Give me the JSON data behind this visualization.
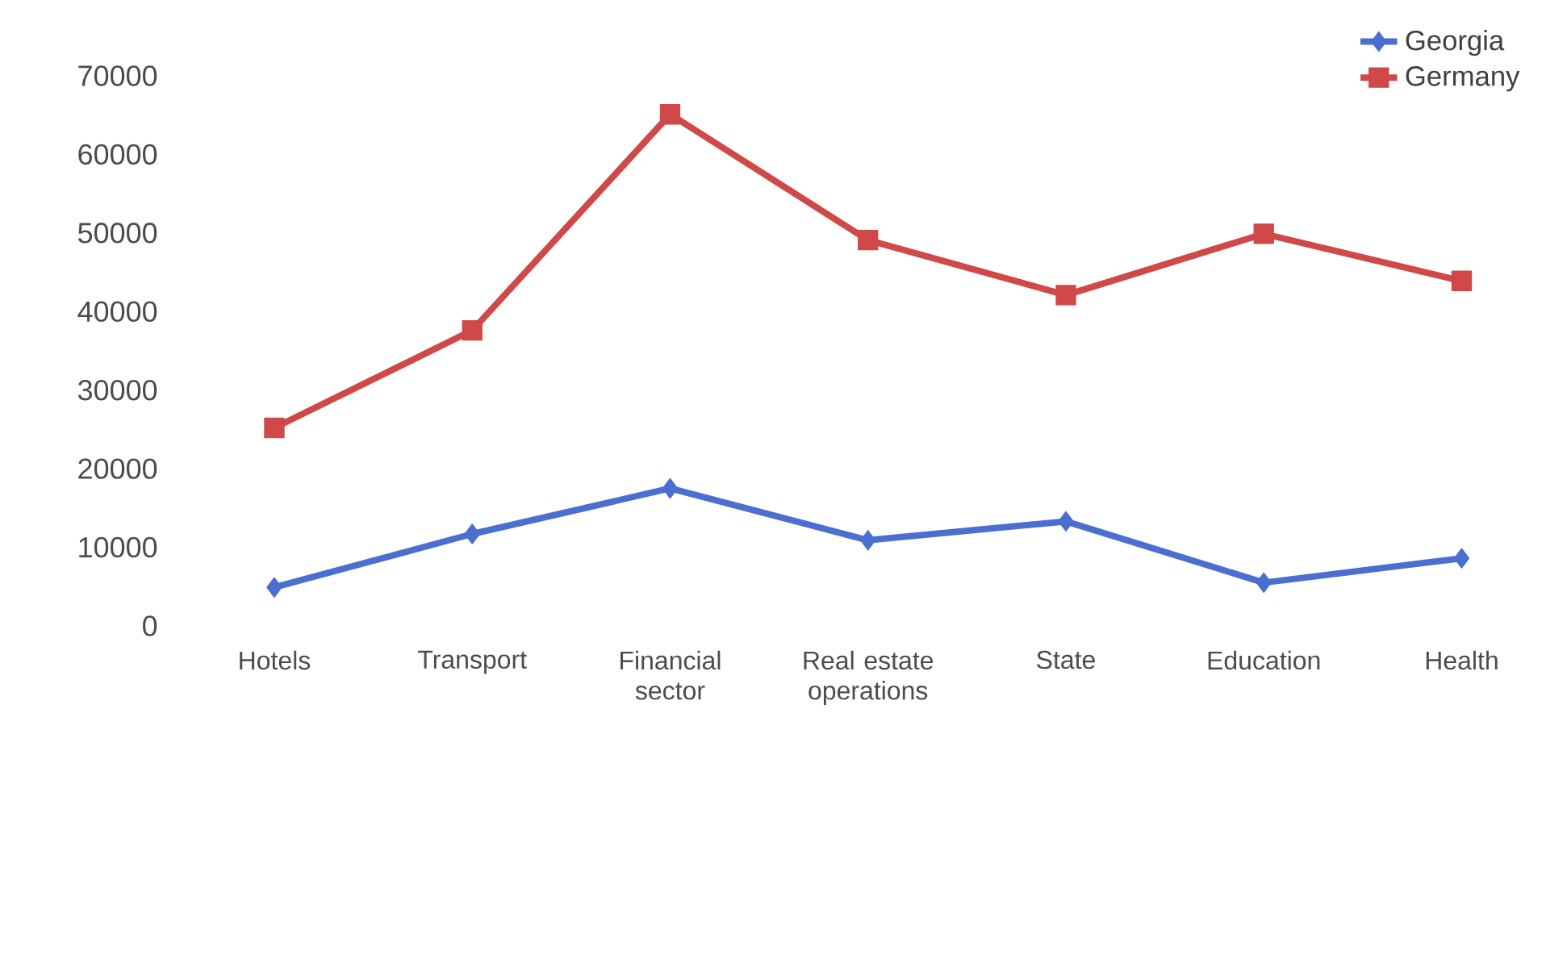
{
  "chart_data": {
    "type": "line",
    "categories": [
      "Hotels",
      "Transport",
      "Financial sector",
      "Real estate operations",
      "State",
      "Education",
      "Health"
    ],
    "series": [
      {
        "name": "Georgia",
        "color": "#4a6fd0",
        "marker": "diamond",
        "values": [
          4900,
          11700,
          17500,
          10900,
          13300,
          5500,
          8600
        ]
      },
      {
        "name": "Germany",
        "color": "#d04848",
        "marker": "square",
        "values": [
          25200,
          37600,
          65100,
          49100,
          42100,
          49900,
          43900
        ]
      }
    ],
    "ylim": [
      0,
      70000
    ],
    "yticks": [
      0,
      10000,
      20000,
      30000,
      40000,
      50000,
      60000,
      70000
    ],
    "grid": false,
    "legend": "top right"
  }
}
